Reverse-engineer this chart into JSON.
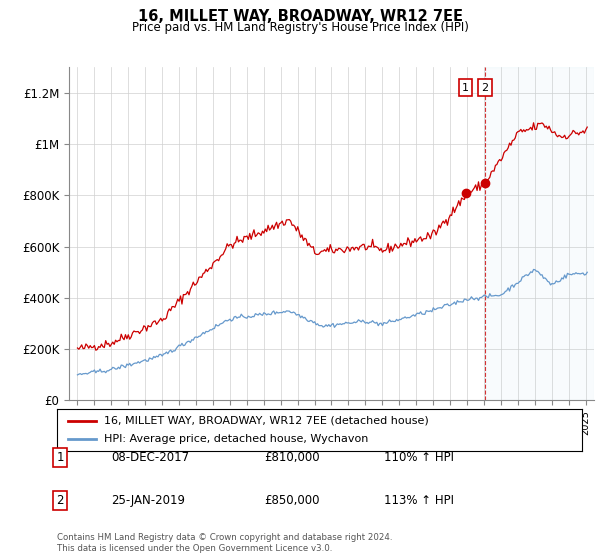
{
  "title": "16, MILLET WAY, BROADWAY, WR12 7EE",
  "subtitle": "Price paid vs. HM Land Registry's House Price Index (HPI)",
  "ylim": [
    0,
    1300000
  ],
  "yticks": [
    0,
    200000,
    400000,
    600000,
    800000,
    1000000,
    1200000
  ],
  "ytick_labels": [
    "£0",
    "£200K",
    "£400K",
    "£600K",
    "£800K",
    "£1M",
    "£1.2M"
  ],
  "red_color": "#cc0000",
  "blue_color": "#6699cc",
  "marker1_x": 2017.92,
  "marker1_y": 810000,
  "marker2_x": 2019.07,
  "marker2_y": 850000,
  "vline2_x": 2019.07,
  "legend_line1": "16, MILLET WAY, BROADWAY, WR12 7EE (detached house)",
  "legend_line2": "HPI: Average price, detached house, Wychavon",
  "table_rows": [
    [
      "1",
      "08-DEC-2017",
      "£810,000",
      "110% ↑ HPI"
    ],
    [
      "2",
      "25-JAN-2019",
      "£850,000",
      "113% ↑ HPI"
    ]
  ],
  "footer": "Contains HM Land Registry data © Crown copyright and database right 2024.\nThis data is licensed under the Open Government Licence v3.0.",
  "xmin": 1994.5,
  "xmax": 2025.5
}
